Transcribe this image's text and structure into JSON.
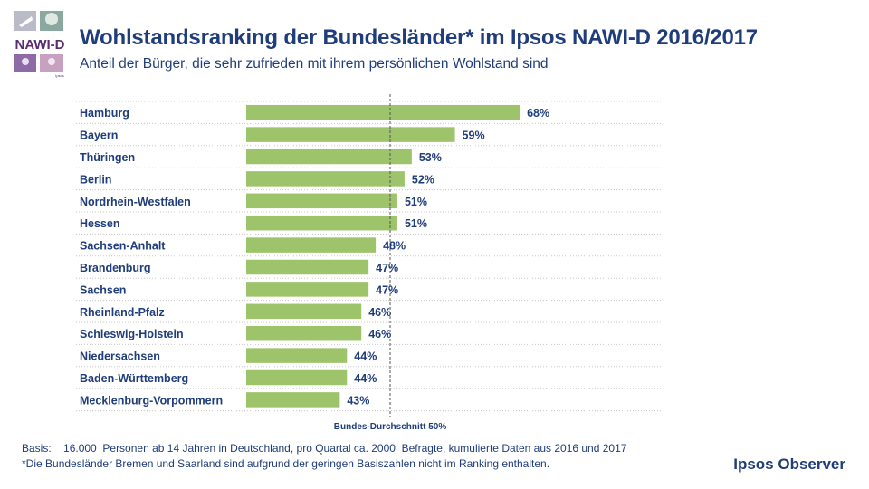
{
  "header": {
    "title": "Wohlstandsranking der Bundesländer* im Ipsos NAWI-D 2016/2017",
    "subtitle": "Anteil der Bürger, die sehr zufrieden mit ihrem persönlichen Wohlstand sind",
    "logo_text": "NAWI-D",
    "logo_subtext": "Ipsos"
  },
  "chart_data": {
    "type": "bar",
    "orientation": "horizontal",
    "categories": [
      "Hamburg",
      "Bayern",
      "Thüringen",
      "Berlin",
      "Nordrhein-Westfalen",
      "Hessen",
      "Sachsen-Anhalt",
      "Brandenburg",
      "Sachsen",
      "Rheinland-Pfalz",
      "Schleswig-Holstein",
      "Niedersachsen",
      "Baden-Württemberg",
      "Mecklenburg-Vorpommern"
    ],
    "values": [
      68,
      59,
      53,
      52,
      51,
      51,
      48,
      47,
      47,
      46,
      46,
      44,
      44,
      43
    ],
    "value_labels": [
      "68%",
      "59%",
      "53%",
      "52%",
      "51%",
      "51%",
      "48%",
      "47%",
      "47%",
      "46%",
      "46%",
      "44%",
      "44%",
      "43%"
    ],
    "unit": "%",
    "xlim": [
      30,
      70
    ],
    "reference_line": {
      "value": 50,
      "label": "Bundes-Durchschnitt  50%"
    },
    "bar_color": "#9dc36b"
  },
  "footer": {
    "basis": "Basis:    16.000  Personen ab 14 Jahren in Deutschland, pro Quartal ca. 2000  Befragte, kumulierte Daten aus 2016 und 2017",
    "note": "*Die Bundesländer Bremen und Saarland sind aufgrund der geringen Basiszahlen nicht im Ranking enthalten.",
    "brand": "Ipsos Observer"
  },
  "colors": {
    "text": "#1f3d7a",
    "bar": "#9dc36b",
    "grid": "#c8c8c8"
  }
}
